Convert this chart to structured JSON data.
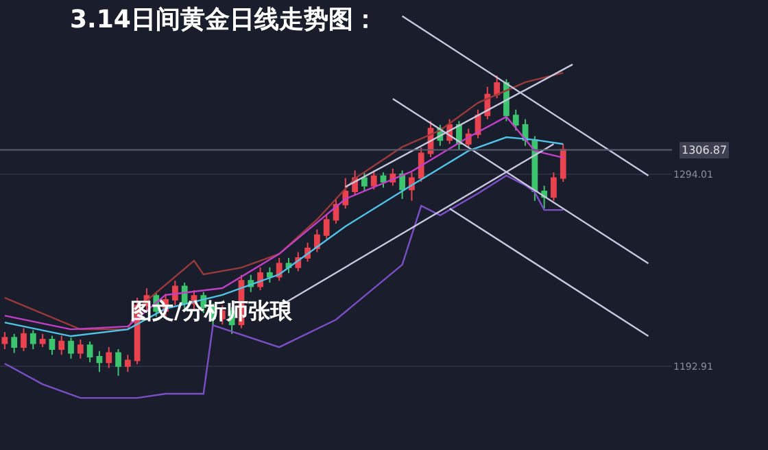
{
  "chart_data": {
    "type": "candlestick",
    "title": "3.14日间黄金日线走势图：",
    "annotations": [
      "图文/分析师张琅"
    ],
    "categories": [
      null,
      null,
      null,
      null,
      null,
      null,
      null,
      null,
      null,
      null,
      null,
      null,
      null,
      null,
      null,
      null,
      null,
      null,
      null,
      null,
      null,
      null,
      null,
      null,
      null,
      null,
      null,
      null,
      null,
      null,
      null,
      null,
      null,
      null,
      null,
      null,
      null,
      null,
      null,
      null,
      null,
      null,
      null,
      null,
      null,
      null,
      null,
      null,
      null,
      null,
      null,
      null,
      null,
      null,
      null,
      null,
      null,
      null,
      null,
      null,
      null,
      null,
      null,
      null,
      null,
      null,
      null,
      null,
      null,
      null,
      null
    ],
    "ohlc": [
      [
        1205,
        1211,
        1202,
        1208
      ],
      [
        1208,
        1210,
        1200,
        1203
      ],
      [
        1203,
        1213,
        1201,
        1210
      ],
      [
        1210,
        1212,
        1202,
        1205
      ],
      [
        1205,
        1210,
        1203,
        1207
      ],
      [
        1207,
        1209,
        1199,
        1202
      ],
      [
        1202,
        1209,
        1199,
        1206
      ],
      [
        1206,
        1208,
        1197,
        1200
      ],
      [
        1200,
        1207,
        1197,
        1204
      ],
      [
        1204,
        1206,
        1195,
        1198
      ],
      [
        1198,
        1201,
        1190,
        1195
      ],
      [
        1195,
        1203,
        1192,
        1200
      ],
      [
        1200,
        1202,
        1188,
        1193
      ],
      [
        1193,
        1199,
        1190,
        1196
      ],
      [
        1196,
        1229,
        1194,
        1225
      ],
      [
        1225,
        1234,
        1222,
        1230
      ],
      [
        1230,
        1232,
        1219,
        1222
      ],
      [
        1222,
        1231,
        1219,
        1228
      ],
      [
        1228,
        1238,
        1225,
        1235
      ],
      [
        1235,
        1237,
        1223,
        1226
      ],
      [
        1226,
        1233,
        1223,
        1230
      ],
      [
        1230,
        1232,
        1221,
        1224
      ],
      [
        1224,
        1226,
        1214,
        1218
      ],
      [
        1218,
        1225,
        1215,
        1222
      ],
      [
        1222,
        1224,
        1210,
        1215
      ],
      [
        1215,
        1241,
        1213,
        1238
      ],
      [
        1238,
        1241,
        1232,
        1235
      ],
      [
        1235,
        1245,
        1233,
        1242
      ],
      [
        1242,
        1245,
        1237,
        1240
      ],
      [
        1240,
        1250,
        1238,
        1247
      ],
      [
        1247,
        1250,
        1242,
        1245
      ],
      [
        1245,
        1253,
        1243,
        1250
      ],
      [
        1250,
        1258,
        1248,
        1255
      ],
      [
        1255,
        1265,
        1253,
        1262
      ],
      [
        1262,
        1273,
        1260,
        1270
      ],
      [
        1270,
        1281,
        1268,
        1278
      ],
      [
        1278,
        1292,
        1276,
        1285
      ],
      [
        1285,
        1296,
        1283,
        1292
      ],
      [
        1292,
        1295,
        1285,
        1288
      ],
      [
        1288,
        1296,
        1286,
        1293
      ],
      [
        1293,
        1295,
        1287,
        1290
      ],
      [
        1290,
        1297,
        1288,
        1294
      ],
      [
        1294,
        1296,
        1281,
        1286
      ],
      [
        1286,
        1295,
        1280,
        1292
      ],
      [
        1292,
        1308,
        1290,
        1305
      ],
      [
        1305,
        1322,
        1303,
        1318
      ],
      [
        1318,
        1320,
        1309,
        1312
      ],
      [
        1312,
        1323,
        1310,
        1320
      ],
      [
        1320,
        1322,
        1307,
        1310
      ],
      [
        1310,
        1318,
        1308,
        1315
      ],
      [
        1315,
        1328,
        1313,
        1325
      ],
      [
        1325,
        1340,
        1323,
        1336
      ],
      [
        1336,
        1346,
        1334,
        1342
      ],
      [
        1342,
        1344,
        1322,
        1325
      ],
      [
        1325,
        1328,
        1317,
        1320
      ],
      [
        1320,
        1323,
        1309,
        1312
      ],
      [
        1312,
        1314,
        1280,
        1285
      ],
      [
        1285,
        1288,
        1276,
        1282
      ],
      [
        1282,
        1295,
        1280,
        1292
      ],
      [
        1292,
        1310,
        1290,
        1307
      ],
      null,
      null,
      null,
      null,
      null,
      null,
      null,
      null,
      null,
      null,
      null
    ],
    "colors": [
      "#e8434f",
      "#3cc46e",
      "#e8434f",
      "#3cc46e",
      "#e8434f",
      "#3cc46e",
      "#e8434f",
      "#3cc46e",
      "#e8434f",
      "#3cc46e",
      "#3cc46e",
      "#e8434f",
      "#3cc46e",
      "#e8434f",
      "#e8434f",
      "#e8434f",
      "#3cc46e",
      "#e8434f",
      "#e8434f",
      "#3cc46e",
      "#e8434f",
      "#3cc46e",
      "#3cc46e",
      "#e8434f",
      "#3cc46e",
      "#e8434f",
      "#3cc46e",
      "#e8434f",
      "#3cc46e",
      "#e8434f",
      "#3cc46e",
      "#e8434f",
      "#e8434f",
      "#e8434f",
      "#e8434f",
      "#e8434f",
      "#e8434f",
      "#e8434f",
      "#3cc46e",
      "#e8434f",
      "#3cc46e",
      "#e8434f",
      "#3cc46e",
      "#e8434f",
      "#e8434f",
      "#e8434f",
      "#3cc46e",
      "#e8434f",
      "#3cc46e",
      "#e8434f",
      "#e8434f",
      "#e8434f",
      "#e8434f",
      "#3cc46e",
      "#3cc46e",
      "#3cc46e",
      "#3cc46e",
      "#3cc46e",
      "#e8434f",
      "#e8434f",
      null,
      null,
      null,
      null,
      null,
      null,
      null,
      null,
      null,
      null,
      null
    ],
    "series": [
      {
        "type": "line",
        "color": "#9a3a3a",
        "values": [
          1229,
          null,
          null,
          null,
          null,
          null,
          null,
          null,
          1212.4,
          null,
          null,
          null,
          null,
          1212.4,
          1223.3,
          null,
          null,
          null,
          null,
          null,
          1248.5,
          1241.3,
          null,
          null,
          null,
          1244.9,
          null,
          null,
          null,
          1252.1,
          null,
          null,
          null,
          1270.2,
          null,
          null,
          null,
          1291.8,
          null,
          null,
          null,
          null,
          1308.4,
          null,
          null,
          null,
          1317.1,
          null,
          null,
          null,
          1331.6,
          null,
          null,
          null,
          null,
          1342.4,
          null,
          null,
          null,
          1347.4,
          null,
          null,
          null,
          null,
          null,
          null,
          null,
          null,
          null,
          null,
          null
        ]
      },
      {
        "type": "line",
        "color": "#7b4fc8",
        "values": [
          1194.4,
          null,
          null,
          null,
          1183.5,
          null,
          null,
          null,
          1176.3,
          null,
          null,
          null,
          null,
          null,
          1176.3,
          null,
          null,
          1178.5,
          null,
          null,
          null,
          1178.5,
          1214.6,
          null,
          null,
          null,
          null,
          null,
          null,
          1203,
          null,
          null,
          null,
          null,
          null,
          1217.5,
          null,
          null,
          null,
          null,
          null,
          null,
          1246.4,
          null,
          1277.4,
          null,
          1272.4,
          null,
          null,
          null,
          1283.9,
          null,
          null,
          1293.3,
          null,
          1288.2,
          1284.6,
          1275.2,
          null,
          1275.2,
          null,
          null,
          null,
          null,
          null,
          null,
          null,
          null,
          null,
          null,
          null
        ]
      },
      {
        "type": "line",
        "color": "#4fc3e8",
        "values": [
          1216,
          null,
          null,
          null,
          null,
          null,
          null,
          1208.8,
          null,
          null,
          null,
          null,
          null,
          1212.4,
          null,
          null,
          null,
          1223.3,
          null,
          null,
          null,
          null,
          null,
          1230.5,
          null,
          null,
          null,
          null,
          null,
          1241.3,
          null,
          null,
          null,
          null,
          null,
          null,
          1266.6,
          null,
          null,
          null,
          null,
          null,
          null,
          1288.2,
          null,
          null,
          null,
          null,
          null,
          1306.3,
          null,
          null,
          null,
          1313.5,
          null,
          null,
          1312.1,
          null,
          null,
          1309.9,
          null,
          null,
          null,
          null,
          null,
          null,
          null,
          null,
          null,
          null,
          null
        ]
      },
      {
        "type": "line",
        "color": "#c040c8",
        "values": [
          1219.6,
          null,
          null,
          null,
          null,
          null,
          null,
          1212.4,
          null,
          null,
          null,
          null,
          null,
          1213.9,
          null,
          null,
          null,
          1230.5,
          null,
          null,
          null,
          null,
          null,
          1234.1,
          null,
          null,
          null,
          null,
          null,
          1252.1,
          null,
          null,
          null,
          null,
          null,
          null,
          1281,
          null,
          null,
          null,
          null,
          null,
          null,
          1295.5,
          null,
          null,
          null,
          null,
          null,
          1313.5,
          null,
          null,
          null,
          1324.3,
          null,
          null,
          1306.3,
          null,
          null,
          1302.7,
          null,
          null,
          null,
          null,
          null,
          null,
          null,
          null,
          null,
          null,
          null
        ]
      },
      {
        "type": "line",
        "color": "#c8c8e0",
        "values": [
          null,
          null,
          null,
          null,
          null,
          null,
          null,
          null,
          null,
          null,
          null,
          null,
          null,
          null,
          null,
          null,
          null,
          null,
          null,
          null,
          null,
          null,
          null,
          null,
          null,
          null,
          null,
          null,
          null,
          null,
          null,
          null,
          null,
          null,
          null,
          null,
          null,
          null,
          null,
          null,
          null,
          null,
          1377.2,
          null,
          null,
          null,
          null,
          null,
          null,
          null,
          null,
          null,
          null,
          null,
          null,
          null,
          null,
          null,
          null,
          null,
          null,
          null,
          null,
          null,
          null,
          null,
          null,
          null,
          1293.3,
          null,
          null
        ]
      },
      {
        "type": "line",
        "color": "#c8c8e0",
        "values": [
          null,
          null,
          null,
          null,
          null,
          null,
          null,
          null,
          null,
          null,
          null,
          null,
          null,
          null,
          null,
          null,
          null,
          null,
          null,
          null,
          null,
          null,
          null,
          null,
          null,
          null,
          null,
          null,
          null,
          null,
          null,
          null,
          null,
          null,
          null,
          null,
          null,
          null,
          null,
          null,
          null,
          1333.7,
          null,
          null,
          null,
          null,
          null,
          null,
          null,
          null,
          null,
          null,
          null,
          null,
          null,
          null,
          null,
          null,
          null,
          null,
          null,
          null,
          null,
          null,
          null,
          null,
          null,
          null,
          1247.1,
          null,
          null
        ]
      },
      {
        "type": "line",
        "color": "#c8c8e0",
        "values": [
          null,
          null,
          null,
          null,
          null,
          null,
          null,
          null,
          null,
          null,
          null,
          null,
          null,
          null,
          null,
          null,
          null,
          null,
          null,
          null,
          null,
          null,
          null,
          null,
          null,
          null,
          null,
          null,
          null,
          null,
          null,
          null,
          null,
          null,
          null,
          null,
          null,
          null,
          null,
          null,
          null,
          null,
          null,
          null,
          null,
          null,
          null,
          1276,
          null,
          null,
          null,
          null,
          null,
          null,
          null,
          null,
          null,
          null,
          null,
          null,
          null,
          null,
          null,
          null,
          null,
          null,
          null,
          null,
          1208.8,
          null,
          null
        ]
      },
      {
        "type": "line",
        "color": "#c8c8e0",
        "values": [
          null,
          null,
          null,
          null,
          null,
          null,
          null,
          null,
          null,
          null,
          null,
          null,
          null,
          null,
          null,
          null,
          null,
          null,
          null,
          null,
          null,
          null,
          null,
          null,
          null,
          null,
          null,
          null,
          null,
          null,
          null,
          null,
          null,
          null,
          null,
          null,
          1287.4,
          null,
          null,
          null,
          null,
          null,
          null,
          null,
          null,
          null,
          null,
          null,
          null,
          null,
          null,
          null,
          null,
          null,
          null,
          null,
          null,
          null,
          null,
          null,
          1351.8,
          null,
          null,
          null,
          null,
          null,
          null,
          null,
          null,
          null,
          null
        ]
      },
      {
        "type": "line",
        "color": "#c8c8e0",
        "values": [
          null,
          null,
          null,
          null,
          null,
          null,
          null,
          null,
          null,
          null,
          null,
          null,
          null,
          null,
          null,
          null,
          null,
          null,
          null,
          null,
          null,
          null,
          null,
          null,
          null,
          null,
          null,
          null,
          null,
          1224.5,
          null,
          null,
          null,
          null,
          null,
          null,
          null,
          null,
          null,
          null,
          null,
          null,
          null,
          null,
          null,
          null,
          null,
          null,
          null,
          null,
          null,
          null,
          null,
          null,
          null,
          null,
          null,
          null,
          1309.9,
          null,
          null,
          null,
          null,
          null,
          null,
          null,
          null,
          null,
          null,
          null,
          null
        ]
      }
    ],
    "ylim": [
      1148.9,
      1385.7
    ],
    "yticks": [
      1192.91,
      1294.01
    ],
    "ref_lines": [
      {
        "axis": "y",
        "value": 1306.87,
        "label": "1306.87",
        "color": "#5a5f70"
      }
    ],
    "grid": "y",
    "tick_labels": "y",
    "marker": "none",
    "line_style": "solid"
  }
}
